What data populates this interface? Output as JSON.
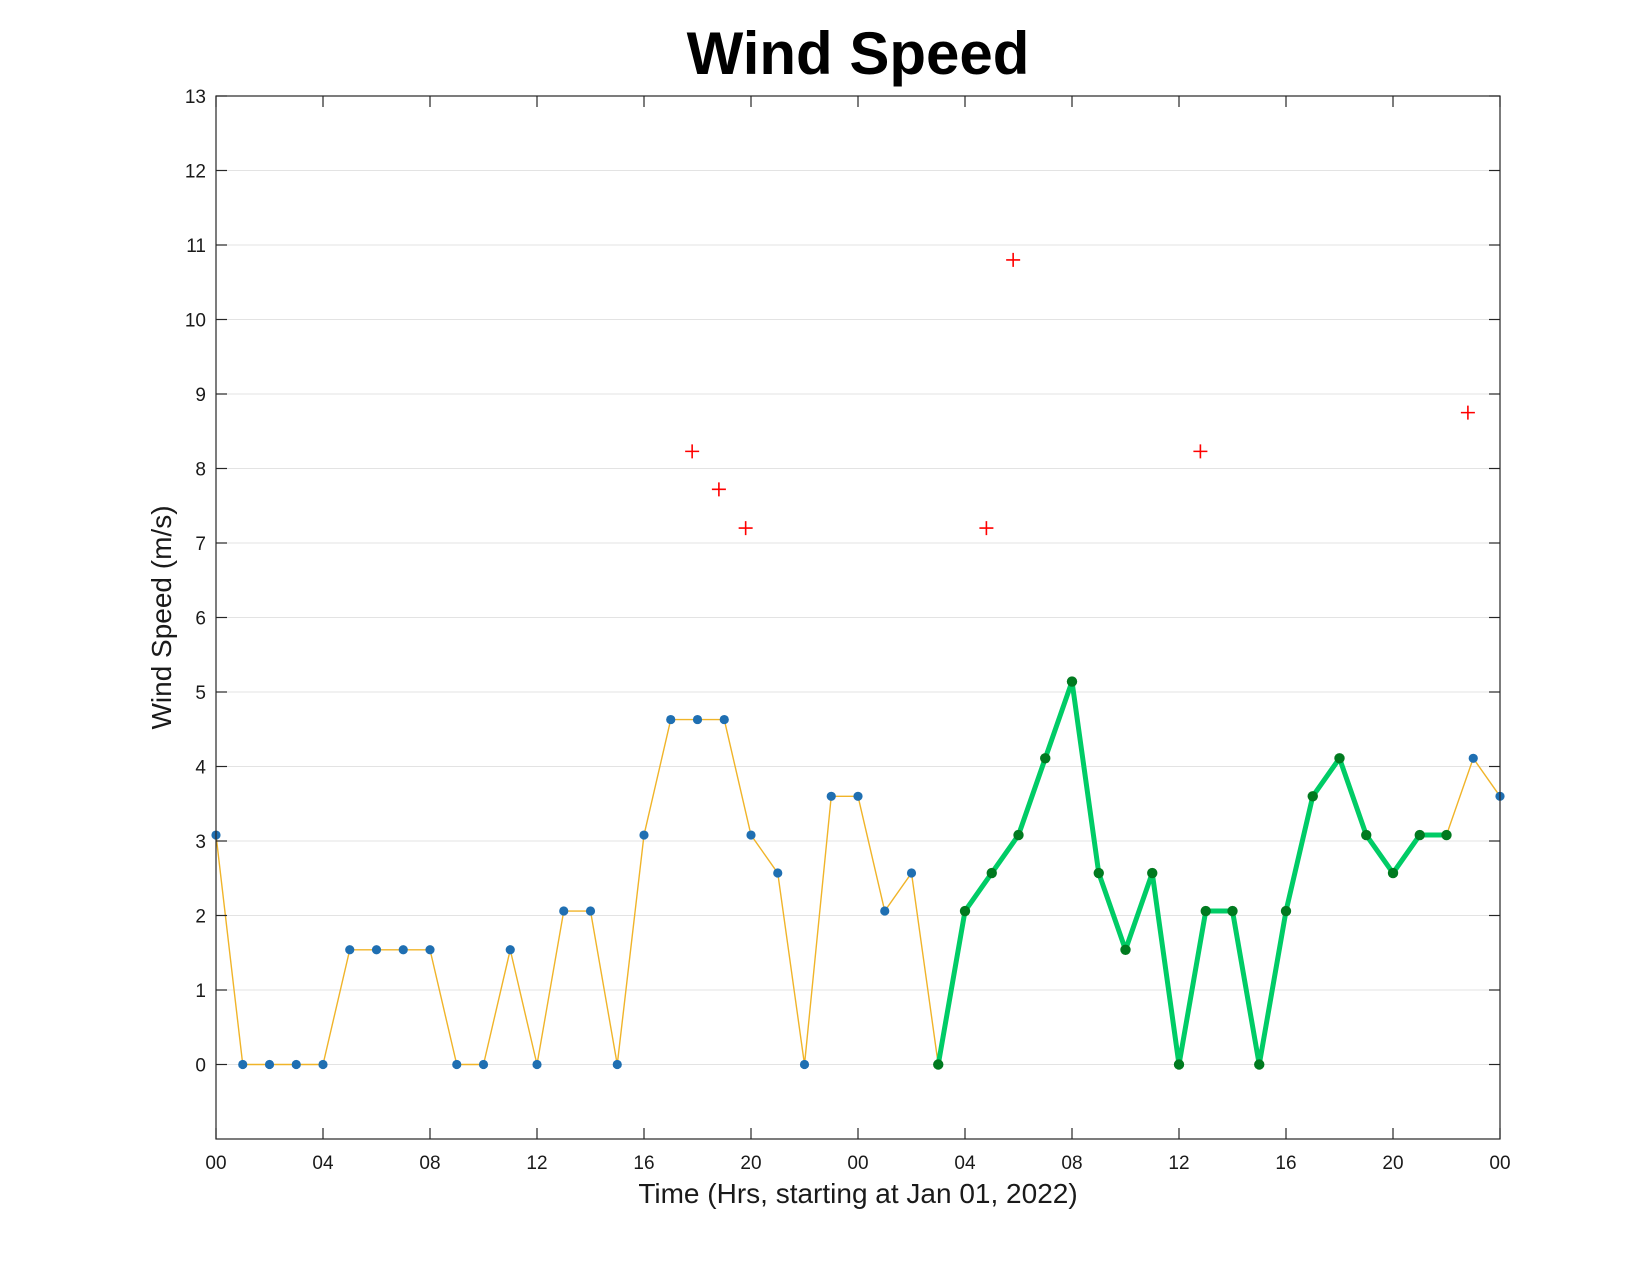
{
  "chart_data": {
    "type": "line",
    "title": "Wind Speed",
    "xlabel": "Time (Hrs, starting at Jan 01, 2022)",
    "ylabel": "Wind Speed (m/s)",
    "x_unit": "hours",
    "xlim": [
      0,
      48
    ],
    "ylim": [
      -1,
      13
    ],
    "yticks": [
      0,
      1,
      2,
      3,
      4,
      5,
      6,
      7,
      8,
      9,
      10,
      11,
      12,
      13
    ],
    "xticks": [
      0,
      4,
      8,
      12,
      16,
      20,
      24,
      28,
      32,
      36,
      40,
      44,
      48
    ],
    "xtick_labels": [
      "00",
      "04",
      "08",
      "12",
      "16",
      "20",
      "00",
      "04",
      "08",
      "12",
      "16",
      "20",
      "00"
    ],
    "grid": "y-only",
    "colors": {
      "raw_line": "#f0b429",
      "raw_marker": "#1f6fb2",
      "highlight_line": "#00cc66",
      "highlight_marker": "#007a1f",
      "outlier": "#ff0000"
    },
    "series": [
      {
        "style": "thin-line-with-dots",
        "x": [
          0,
          1,
          2,
          3,
          4,
          5,
          6,
          7,
          8,
          9,
          10,
          11,
          12,
          13,
          14,
          15,
          16,
          17,
          18,
          19,
          20,
          21,
          22,
          23,
          24,
          25,
          26,
          27,
          28,
          29,
          30,
          31,
          32,
          33,
          34,
          35,
          36,
          37,
          38,
          39,
          40,
          41,
          42,
          43,
          44,
          45,
          46,
          47,
          48
        ],
        "y": [
          3.08,
          0,
          0,
          0,
          0,
          1.54,
          1.54,
          1.54,
          1.54,
          0,
          0,
          1.54,
          0,
          2.06,
          2.06,
          0,
          3.08,
          4.63,
          4.63,
          4.63,
          3.08,
          2.57,
          0,
          3.6,
          3.6,
          2.06,
          2.57,
          0,
          2.06,
          2.57,
          3.08,
          4.11,
          5.14,
          2.57,
          1.54,
          2.57,
          0,
          2.06,
          2.06,
          0,
          2.06,
          3.6,
          4.11,
          3.08,
          2.57,
          3.08,
          3.08,
          4.11,
          3.6
        ]
      },
      {
        "style": "thick-line-with-dots",
        "x": [
          27,
          28,
          29,
          30,
          31,
          32,
          33,
          34,
          35,
          36,
          37,
          38,
          39,
          40,
          41,
          42,
          43,
          44,
          45,
          46
        ],
        "y": [
          0,
          2.06,
          2.57,
          3.08,
          4.11,
          5.14,
          2.57,
          1.54,
          2.57,
          0,
          2.06,
          2.06,
          0,
          2.06,
          3.6,
          4.11,
          3.08,
          2.57,
          3.08,
          3.08
        ]
      },
      {
        "style": "plus-markers",
        "x": [
          17.8,
          18.8,
          19.8,
          28.8,
          29.8,
          36.8,
          46.8
        ],
        "y": [
          8.23,
          7.72,
          7.2,
          7.2,
          10.8,
          8.23,
          8.75
        ]
      }
    ]
  }
}
